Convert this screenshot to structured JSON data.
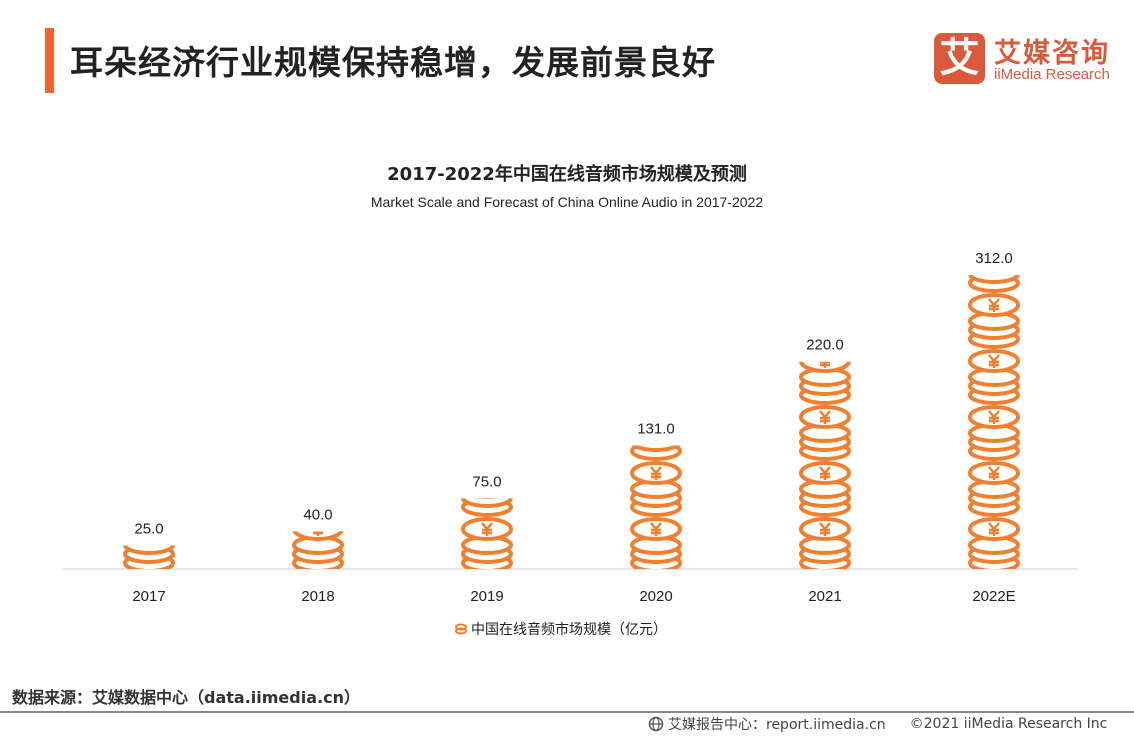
{
  "header": {
    "title": "耳朵经济行业规模保持稳增，发展前景良好"
  },
  "logo": {
    "mark": "艾",
    "cn": "艾媒咨询",
    "en": "iiMedia Research"
  },
  "chart_data": {
    "type": "bar",
    "title": "2017-2022年中国在线音频市场规模及预测",
    "subtitle": "Market Scale and Forecast of China Online Audio in 2017-2022",
    "categories": [
      "2017",
      "2018",
      "2019",
      "2020",
      "2021",
      "2022E"
    ],
    "series": [
      {
        "name": "中国在线音频市场规模（亿元）",
        "values": [
          25.0,
          40.0,
          75.0,
          131.0,
          220.0,
          312.0
        ],
        "labels": [
          "25.0",
          "40.0",
          "75.0",
          "131.0",
          "220.0",
          "312.0"
        ]
      }
    ],
    "ylim": [
      0,
      312
    ],
    "color": "#F08030",
    "legend": "bottom"
  },
  "footer": {
    "source": "数据来源：艾媒数据中心（data.iimedia.cn）",
    "report": "艾媒报告中心：report.iimedia.cn",
    "copyright": "©2021  iiMedia Research  Inc"
  }
}
